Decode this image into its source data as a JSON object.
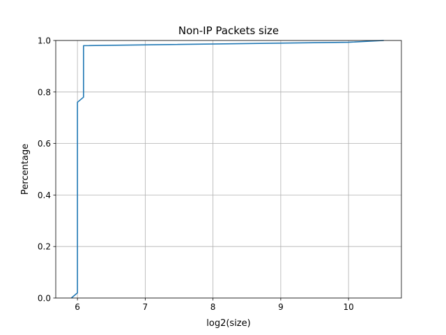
{
  "chart_data": {
    "type": "line",
    "title": "Non-IP Packets size",
    "xlabel": "log2(size)",
    "ylabel": "Percentage",
    "xlim": [
      5.68,
      10.78
    ],
    "ylim": [
      0.0,
      1.0
    ],
    "xticks": [
      6,
      7,
      8,
      9,
      10
    ],
    "yticks": [
      0.0,
      0.2,
      0.4,
      0.6,
      0.8,
      1.0
    ],
    "xtick_labels": [
      "6",
      "7",
      "8",
      "9",
      "10"
    ],
    "ytick_labels": [
      "0.0",
      "0.2",
      "0.4",
      "0.6",
      "0.8",
      "1.0"
    ],
    "grid": true,
    "series": [
      {
        "color": "#1f77b4",
        "x": [
          5.91,
          6.0,
          6.0,
          6.09,
          6.09,
          10.0,
          10.52
        ],
        "y": [
          0.0,
          0.02,
          0.76,
          0.78,
          0.98,
          0.993,
          1.0
        ]
      }
    ]
  }
}
